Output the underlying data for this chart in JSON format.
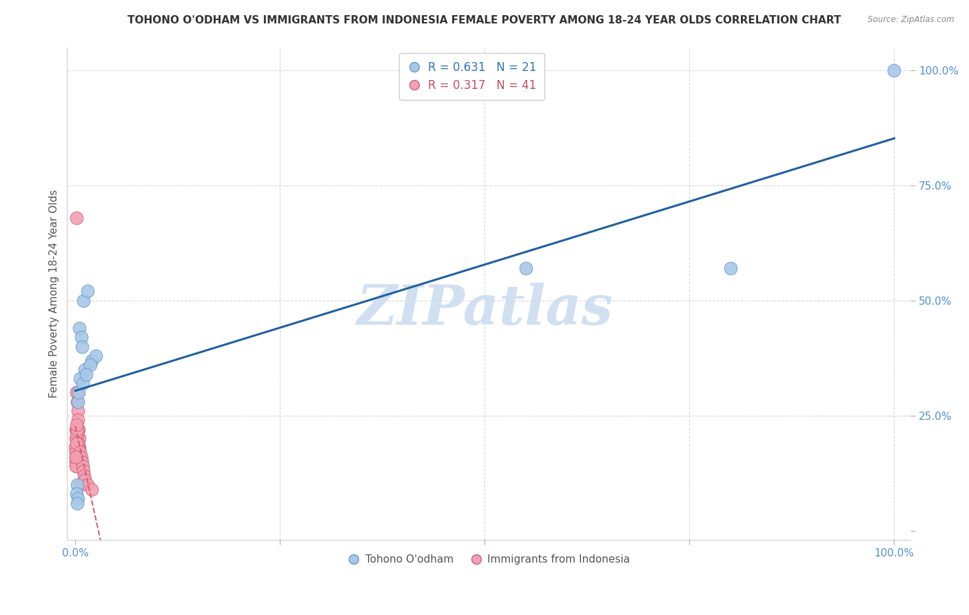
{
  "title": "TOHONO O'ODHAM VS IMMIGRANTS FROM INDONESIA FEMALE POVERTY AMONG 18-24 YEAR OLDS CORRELATION CHART",
  "source": "Source: ZipAtlas.com",
  "ylabel": "Female Poverty Among 18-24 Year Olds",
  "watermark_text": "ZIPatlas",
  "legend_r1": "0.631",
  "legend_n1": "21",
  "legend_r2": "0.317",
  "legend_n2": "41",
  "legend_label1": "Tohono O'odham",
  "legend_label2": "Immigrants from Indonesia",
  "xticklabels": [
    "0.0%",
    "",
    "",
    "",
    "100.0%"
  ],
  "yticklabels_right": [
    "",
    "25.0%",
    "50.0%",
    "75.0%",
    "100.0%"
  ],
  "scatter_color_blue": "#a8c8e8",
  "scatter_color_pink": "#f4a0b5",
  "trendline_blue": "#2060a0",
  "trendline_pink": "#d06070",
  "legend_text_blue": "#3070c0",
  "legend_text_pink": "#c05060",
  "axis_tick_color": "#5090cc",
  "ylabel_color": "#555555",
  "grid_color": "#d8d8d8",
  "background_color": "#ffffff",
  "watermark_color": "#ccddf0",
  "title_color": "#333333",
  "source_color": "#888888",
  "tohono_x": [
    0.5,
    1.0,
    1.5,
    2.0,
    0.7,
    1.2,
    0.3,
    0.8,
    2.5,
    1.8,
    0.4,
    0.6,
    0.9,
    55.0,
    80.0,
    100.0,
    0.2,
    0.15,
    0.35,
    1.3,
    0.25
  ],
  "tohono_y": [
    44.0,
    50.0,
    52.0,
    37.0,
    42.0,
    35.0,
    28.0,
    40.0,
    38.0,
    36.0,
    30.0,
    33.0,
    32.0,
    57.0,
    57.0,
    100.0,
    10.0,
    8.0,
    7.0,
    34.0,
    6.0
  ],
  "indo_x": [
    0.05,
    0.1,
    0.15,
    0.2,
    0.25,
    0.3,
    0.35,
    0.4,
    0.45,
    0.5,
    0.06,
    0.12,
    0.18,
    0.22,
    0.28,
    0.33,
    0.38,
    0.42,
    0.48,
    0.55,
    0.08,
    0.16,
    0.23,
    0.32,
    0.02,
    0.04,
    0.07,
    0.09,
    0.11,
    0.13,
    0.6,
    0.7,
    0.8,
    0.9,
    1.0,
    1.1,
    1.2,
    1.5,
    2.0,
    0.03,
    0.19
  ],
  "indo_y": [
    20.0,
    22.0,
    14.0,
    30.0,
    28.0,
    26.0,
    24.0,
    22.0,
    20.0,
    18.0,
    17.0,
    15.0,
    30.0,
    22.0,
    21.0,
    19.0,
    18.0,
    17.0,
    16.0,
    10.0,
    16.0,
    21.0,
    22.0,
    19.0,
    18.0,
    17.0,
    15.0,
    14.0,
    19.0,
    23.0,
    17.0,
    16.0,
    15.0,
    14.0,
    13.0,
    12.0,
    11.0,
    10.0,
    9.0,
    16.0,
    68.0
  ]
}
